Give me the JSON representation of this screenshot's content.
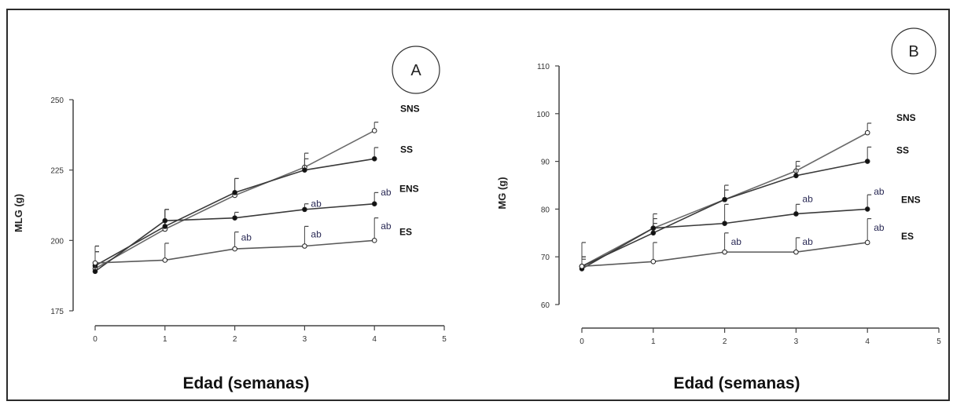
{
  "chart_data": [
    {
      "type": "line",
      "panel_label": "A",
      "xlabel": "Edad (semanas)",
      "ylabel": "MLG (g)",
      "xlim": [
        0,
        5
      ],
      "ylim": [
        175,
        250
      ],
      "xticks": [
        0,
        1,
        2,
        3,
        4,
        5
      ],
      "yticks": [
        175,
        200,
        225,
        250
      ],
      "x": [
        0,
        1,
        2,
        3,
        4
      ],
      "series": [
        {
          "name": "SNS",
          "marker": "open",
          "values": [
            190,
            204,
            216,
            226,
            239
          ],
          "errors": [
            6,
            7,
            6,
            5,
            3
          ]
        },
        {
          "name": "SS",
          "marker": "filled",
          "values": [
            191,
            205,
            217,
            225,
            229
          ],
          "errors": [
            7,
            6,
            5,
            4,
            4
          ]
        },
        {
          "name": "ENS",
          "marker": "filled",
          "values": [
            189,
            207,
            208,
            211,
            213
          ],
          "errors": [
            7,
            4,
            2,
            2,
            4
          ]
        },
        {
          "name": "ES",
          "marker": "open",
          "values": [
            192,
            193,
            197,
            198,
            200
          ],
          "errors": [
            6,
            6,
            6,
            7,
            8
          ]
        }
      ],
      "annotations": [
        {
          "text": "ab",
          "x": 3,
          "y": 212
        },
        {
          "text": "ab",
          "x": 4,
          "y": 216
        },
        {
          "text": "ab",
          "x": 2,
          "y": 200
        },
        {
          "text": "ab",
          "x": 3,
          "y": 201
        },
        {
          "text": "ab",
          "x": 4,
          "y": 204
        }
      ]
    },
    {
      "type": "line",
      "panel_label": "B",
      "xlabel": "Edad (semanas)",
      "ylabel": "MG (g)",
      "xlim": [
        0,
        5
      ],
      "ylim": [
        60,
        110
      ],
      "xticks": [
        0,
        1,
        2,
        3,
        4,
        5
      ],
      "yticks": [
        60,
        70,
        80,
        90,
        100,
        110
      ],
      "x": [
        0,
        1,
        2,
        3,
        4
      ],
      "series": [
        {
          "name": "SNS",
          "marker": "open",
          "values": [
            68,
            76,
            82,
            88,
            96
          ],
          "errors": [
            2,
            2,
            2,
            2,
            2
          ]
        },
        {
          "name": "SS",
          "marker": "filled",
          "values": [
            68,
            75,
            82,
            87,
            90
          ],
          "errors": [
            2,
            2,
            3,
            2,
            3
          ]
        },
        {
          "name": "ENS",
          "marker": "filled",
          "values": [
            67.5,
            76,
            77,
            79,
            80
          ],
          "errors": [
            2,
            3,
            4,
            2,
            3
          ]
        },
        {
          "name": "ES",
          "marker": "open",
          "values": [
            68,
            69,
            71,
            71,
            73
          ],
          "errors": [
            5,
            4,
            4,
            3,
            5
          ]
        }
      ],
      "annotations": [
        {
          "text": "ab",
          "x": 3,
          "y": 81.5
        },
        {
          "text": "ab",
          "x": 4,
          "y": 83
        },
        {
          "text": "ab",
          "x": 2,
          "y": 72.5
        },
        {
          "text": "ab",
          "x": 3,
          "y": 72.5
        },
        {
          "text": "ab",
          "x": 4,
          "y": 75.5
        }
      ]
    }
  ]
}
